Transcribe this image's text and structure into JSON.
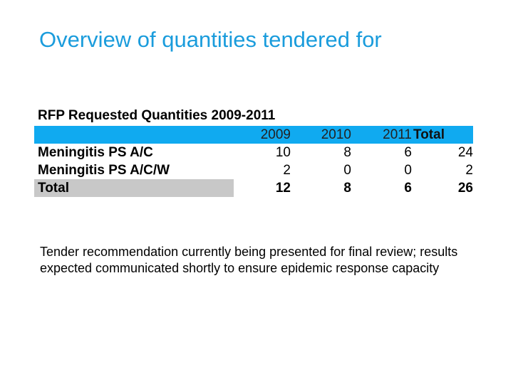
{
  "slide": {
    "title": "Overview of quantities tendered for",
    "body_text": "Tender recommendation currently being presented for final review; results expected communicated shortly to ensure epidemic response capacity"
  },
  "table": {
    "title": "RFP Requested Quantities 2009-2011",
    "headers": [
      "",
      "2009",
      "2010",
      "2011",
      "Total"
    ],
    "rows": [
      {
        "label": "Meningitis PS A/C",
        "values": [
          "10",
          "8",
          "6",
          "24"
        ]
      },
      {
        "label": "Meningitis PS A/C/W",
        "values": [
          "2",
          "0",
          "0",
          "2"
        ]
      }
    ],
    "total": {
      "label": "Total",
      "values": [
        "12",
        "8",
        "6",
        "26"
      ]
    }
  },
  "colors": {
    "title": "#1a9cdc",
    "header_fill": "#10aaf0",
    "total_label_fill": "#c8c8c8"
  }
}
